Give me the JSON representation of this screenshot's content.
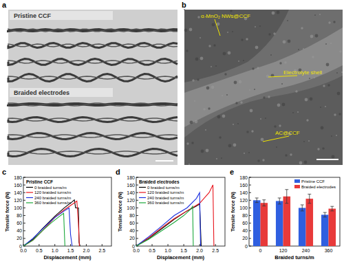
{
  "panel_labels": [
    "a",
    "b",
    "c",
    "d",
    "e"
  ],
  "photo_a": {
    "captions": [
      "Pristine CCF",
      "Braided electrodes"
    ]
  },
  "photo_b": {
    "annotations": [
      "α-MnO₂ NWs@CCF",
      "Electrolyte shell",
      "AC@CCF"
    ]
  },
  "chart_data": [
    {
      "type": "line",
      "title": "Pristine CCF",
      "x_label": "Displacement (mm)",
      "y_label": "Tensile force (N)",
      "xlim": [
        0,
        2.8
      ],
      "ylim": [
        0,
        180
      ],
      "xticks": [
        {
          "value": 0,
          "label": "0.0"
        },
        0.5,
        {
          "value": 1,
          "label": "1.0"
        },
        1.5,
        {
          "value": 2,
          "label": "2.0"
        },
        2.5
      ],
      "yticks": [
        0,
        20,
        40,
        60,
        80,
        100,
        120,
        140,
        160,
        180
      ],
      "grid": false,
      "legend": "upper left",
      "series": [
        {
          "name": "0 braided turns/m",
          "color": "#000000",
          "x": [
            0,
            0.3,
            0.6,
            1.0,
            1.3,
            1.55,
            1.62,
            1.66,
            1.75,
            1.77,
            1.8
          ],
          "values": [
            0,
            18,
            45,
            78,
            100,
            116,
            121,
            100,
            100,
            10,
            0
          ]
        },
        {
          "name": "120 braided turns/m",
          "color": "#e8141c",
          "x": [
            0,
            0.3,
            0.6,
            1.0,
            1.3,
            1.6,
            1.7,
            1.75,
            1.78
          ],
          "values": [
            0,
            15,
            40,
            75,
            95,
            112,
            118,
            60,
            0
          ]
        },
        {
          "name": "240 braided turns/m",
          "color": "#1a2fe0",
          "x": [
            0,
            0.3,
            0.7,
            1.0,
            1.3,
            1.45,
            1.5,
            1.55
          ],
          "values": [
            0,
            20,
            52,
            75,
            92,
            100,
            30,
            0
          ]
        },
        {
          "name": "360 braided turns/m",
          "color": "#1aa83a",
          "x": [
            0,
            0.3,
            0.6,
            0.9,
            1.15,
            1.28,
            1.32
          ],
          "values": [
            0,
            15,
            40,
            62,
            78,
            86,
            0
          ]
        }
      ]
    },
    {
      "type": "line",
      "title": "Braided electrodes",
      "x_label": "Displacement (mm)",
      "y_label": "Tensile force (N)",
      "xlim": [
        0,
        2.8
      ],
      "ylim": [
        0,
        180
      ],
      "xticks": [
        {
          "value": 0,
          "label": "0.0"
        },
        0.5,
        {
          "value": 1,
          "label": "1.0"
        },
        1.5,
        {
          "value": 2,
          "label": "2.0"
        },
        2.5
      ],
      "yticks": [
        0,
        20,
        40,
        60,
        80,
        100,
        120,
        140,
        160,
        180
      ],
      "grid": false,
      "legend": "upper left",
      "series": [
        {
          "name": "0 braided turns/m",
          "color": "#000000",
          "x": [
            0,
            0.4,
            0.8,
            1.2,
            1.6,
            1.9,
            2.0,
            2.05
          ],
          "values": [
            0,
            20,
            45,
            70,
            92,
            105,
            110,
            0
          ]
        },
        {
          "name": "120 braided turns/m",
          "color": "#e8141c",
          "x": [
            0,
            0.4,
            0.8,
            1.2,
            1.6,
            2.0,
            2.3,
            2.42,
            2.45
          ],
          "values": [
            0,
            22,
            48,
            72,
            92,
            112,
            140,
            160,
            0
          ]
        },
        {
          "name": "240 braided turns/m",
          "color": "#1a2fe0",
          "x": [
            0,
            0.4,
            0.8,
            1.2,
            1.6,
            1.9,
            2.0,
            2.03
          ],
          "values": [
            0,
            25,
            52,
            80,
            100,
            125,
            140,
            0
          ]
        },
        {
          "name": "360 braided turns/m",
          "color": "#1aa83a",
          "x": [
            0,
            0.4,
            0.8,
            1.2,
            1.5,
            1.7,
            1.78,
            1.8
          ],
          "values": [
            0,
            18,
            40,
            62,
            80,
            95,
            104,
            0
          ]
        }
      ]
    },
    {
      "type": "bar",
      "x_label": "Braided turns/m",
      "y_label": "Tensile force (N)",
      "categories": [
        "0",
        "120",
        "240",
        "360"
      ],
      "ylim": [
        0,
        180
      ],
      "yticks": [
        0,
        20,
        40,
        60,
        80,
        100,
        120,
        140,
        160,
        180
      ],
      "grid": false,
      "legend": "upper right",
      "series": [
        {
          "name": "Pristine CCF",
          "color": "#2f5fe0",
          "values": [
            120,
            118,
            100,
            82
          ],
          "errors": [
            6,
            8,
            8,
            6
          ]
        },
        {
          "name": "Braided electrodes",
          "color": "#e83a3a",
          "values": [
            113,
            130,
            124,
            98
          ],
          "errors": [
            8,
            18,
            12,
            6
          ]
        }
      ]
    }
  ]
}
